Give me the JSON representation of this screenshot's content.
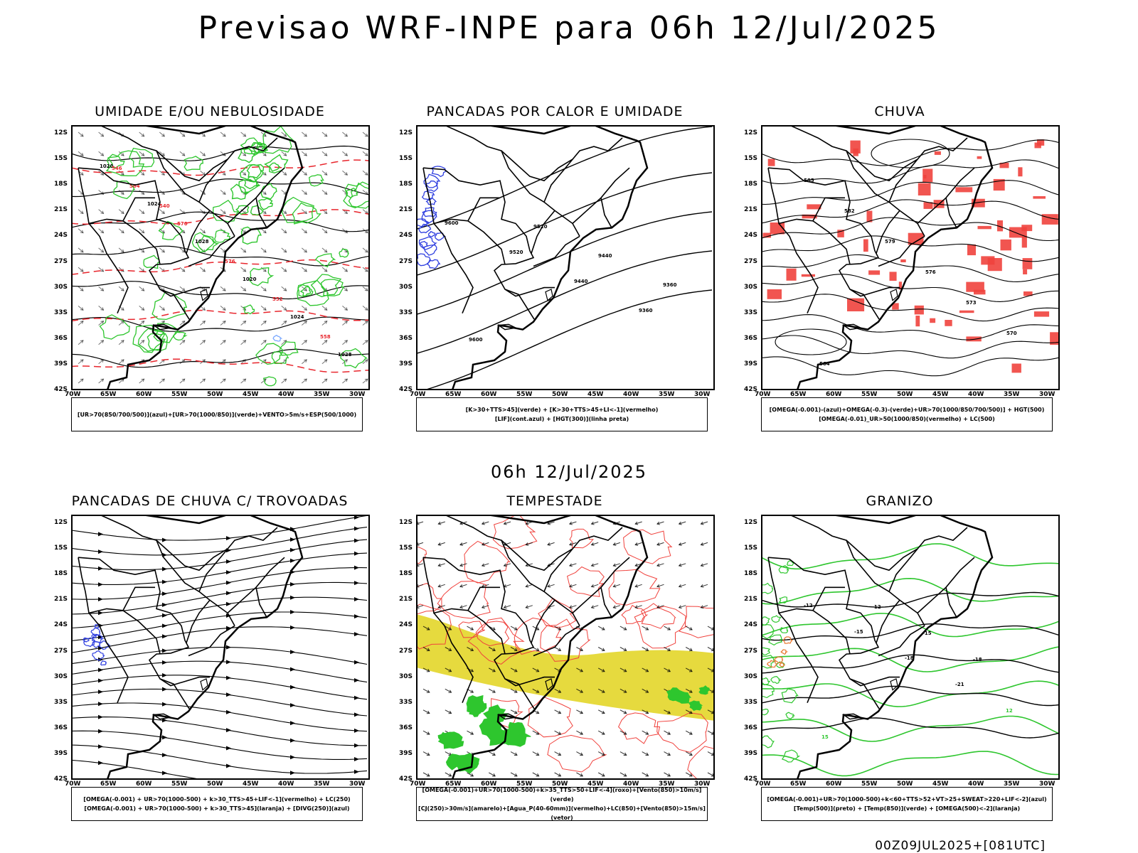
{
  "title": "Previsao WRF-INPE  para 06h 12/Jul/2025",
  "mid_date": "06h 12/Jul/2025",
  "footer": "00Z09JUL2025+[081UTC]",
  "lat_labels": [
    "12S",
    "15S",
    "18S",
    "21S",
    "24S",
    "27S",
    "30S",
    "33S",
    "36S",
    "39S",
    "42S"
  ],
  "lon_labels": [
    "70W",
    "65W",
    "60W",
    "55W",
    "50W",
    "45W",
    "40W",
    "35W",
    "30W"
  ],
  "panels": [
    {
      "title": "UMIDADE E/OU NEBULOSIDADE",
      "legend": [
        "[UR>70(850/700/500)](azul)+[UR>70(1000/850)](verde)+VENTO>5m/s+ESP(500/1000)"
      ],
      "contour_labels": [
        "1020",
        "1024",
        "1028",
        "1020",
        "1024",
        "1028",
        "564",
        "570",
        "576",
        "552",
        "558",
        "546",
        "540"
      ]
    },
    {
      "title": "PANCADAS POR CALOR E UMIDADE",
      "legend": [
        "[K>30+TTS>45](verde) + [K>30+TTS>45+LI<-1](vermelho)",
        "[LIF](cont.azul) + [HGT(300)](linha preta)"
      ],
      "contour_labels": [
        "9600",
        "9520",
        "9440",
        "9360",
        "9600",
        "9520",
        "9440",
        "9360"
      ]
    },
    {
      "title": "CHUVA",
      "legend": [
        "[OMEGA(-0.001)-(azul)+OMEGA(-0.3)-(verde)+UR>70(1000/850/700/500)] + HGT(500)",
        "[OMEGA(-0.01)_UR>50(1000/850)(vermelho) + LC(500)"
      ],
      "contour_labels": [
        "585",
        "582",
        "579",
        "576",
        "573",
        "570",
        "564"
      ]
    },
    {
      "title": "PANCADAS DE CHUVA C/ TROVOADAS",
      "legend": [
        "[OMEGA(-0.001) + UR>70(1000-500) + k>30_TTS>45+LIF<-1](vermelho) + LC(250)",
        "[OMEGA(-0.001) + UR>70(1000-500) + k>30_TTS>45](laranja) + [DIVG(250)](azul)"
      ],
      "contour_labels": []
    },
    {
      "title": "TEMPESTADE",
      "legend": [
        "[OMEGA(-0.001)+UR>70(1000-500)+k>35_TTS>50+LIF<-4](roxo)+[Vento(850)>10m/s](verde)",
        "[CJ(250)>30m/s](amarelo)+[Agua_P(40-60mm)](vermelho)+LC(850)+[Vento(850)>15m/s](vetor)"
      ],
      "contour_labels": []
    },
    {
      "title": "GRANIZO",
      "legend": [
        "[OMEGA(-0.001)+UR>70(1000-500)+k<60+TTS>52+VT>25+SWEAT>220+LIF<-2](azul)",
        "[Temp(500)](preto) + [Temp(850)](verde) + [OMEGA(500)<-2](laranja)"
      ],
      "contour_labels": [
        "-12",
        "-15",
        "-18",
        "-21",
        "12",
        "15",
        "-12",
        "-15",
        "-18"
      ]
    }
  ]
}
